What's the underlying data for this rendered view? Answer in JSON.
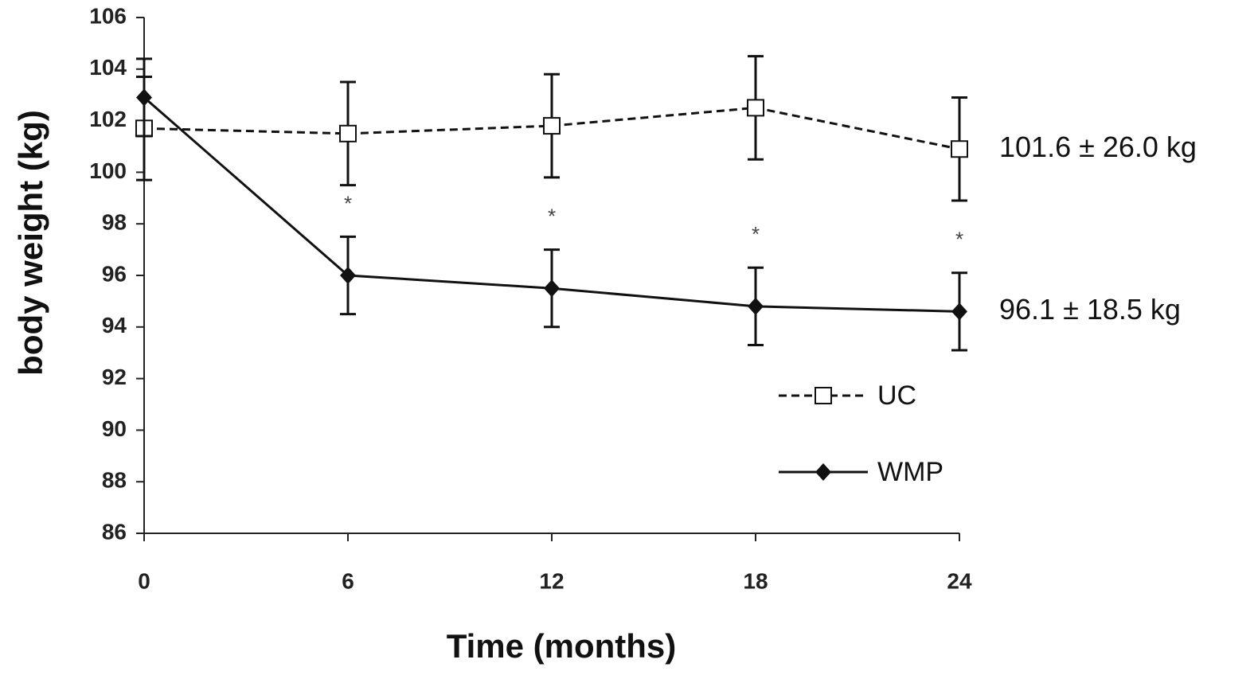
{
  "chart_data": {
    "type": "line",
    "x_label": "Time (months)",
    "y_label": "body weight (kg)",
    "x": [
      0,
      6,
      12,
      18,
      24
    ],
    "xlim": [
      0,
      24
    ],
    "xticks": [
      0,
      6,
      12,
      18,
      24
    ],
    "ylim": [
      86,
      106
    ],
    "yticks": [
      86,
      88,
      90,
      92,
      94,
      96,
      98,
      100,
      102,
      104,
      106
    ],
    "grid": false,
    "legend": "lower right",
    "series": [
      {
        "name": "UC",
        "color": "#111111",
        "dash": "dashed",
        "marker": "square-open",
        "values": [
          101.7,
          101.5,
          101.8,
          102.5,
          100.9
        ],
        "errors": [
          2.0,
          2.0,
          2.0,
          2.0,
          2.0
        ],
        "end_label": "101.6 ± 26.0 kg"
      },
      {
        "name": "WMP",
        "color": "#111111",
        "dash": "solid",
        "marker": "diamond",
        "values": [
          102.9,
          96.0,
          95.5,
          94.8,
          94.6
        ],
        "errors": [
          1.5,
          1.5,
          1.5,
          1.5,
          1.5
        ],
        "end_label": "96.1 ± 18.5 kg"
      }
    ],
    "annotations": [
      {
        "text": "*",
        "x": 6
      },
      {
        "text": "*",
        "x": 12
      },
      {
        "text": "*",
        "x": 18
      },
      {
        "text": "*",
        "x": 24
      }
    ]
  }
}
